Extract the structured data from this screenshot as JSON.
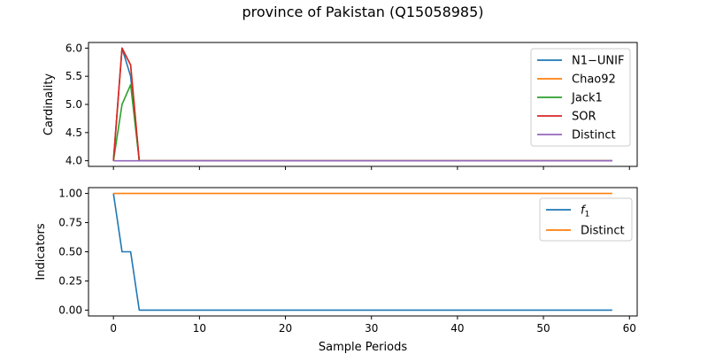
{
  "chart_data": {
    "type": "line",
    "title": "province of Pakistan (Q15058985)",
    "xlabel": "Sample Periods",
    "xlim": [
      -2.9,
      60.9
    ],
    "xticks": [
      0,
      10,
      20,
      30,
      40,
      50,
      60
    ],
    "panels": [
      {
        "ylabel": "Cardinality",
        "ylim": [
          3.9,
          6.1
        ],
        "yticks": [
          "4.0",
          "4.5",
          "5.0",
          "5.5",
          "6.0"
        ],
        "legend": "top-right",
        "series": [
          {
            "name": "N1−UNIF",
            "color": "#1f77b4",
            "points": [
              [
                0,
                4.0
              ],
              [
                1,
                6.0
              ],
              [
                2,
                5.5
              ],
              [
                3,
                4.0
              ],
              [
                58,
                4.0
              ]
            ]
          },
          {
            "name": "Chao92",
            "color": "#ff7f0e",
            "points": [
              [
                0,
                4.0
              ],
              [
                1,
                6.0
              ],
              [
                2,
                5.7
              ],
              [
                3,
                4.0
              ],
              [
                58,
                4.0
              ]
            ]
          },
          {
            "name": "Jack1",
            "color": "#2ca02c",
            "points": [
              [
                0,
                4.0
              ],
              [
                1,
                5.0
              ],
              [
                2,
                5.35
              ],
              [
                3,
                4.0
              ],
              [
                58,
                4.0
              ]
            ]
          },
          {
            "name": "SOR",
            "color": "#d62728",
            "points": [
              [
                0,
                4.0
              ],
              [
                1,
                6.0
              ],
              [
                2,
                5.7
              ],
              [
                3,
                4.0
              ],
              [
                58,
                4.0
              ]
            ]
          },
          {
            "name": "Distinct",
            "color": "#9467bd",
            "points": [
              [
                0,
                4.0
              ],
              [
                58,
                4.0
              ]
            ]
          }
        ]
      },
      {
        "ylabel": "Indicators",
        "ylim": [
          -0.05,
          1.05
        ],
        "yticks": [
          "0.00",
          "0.25",
          "0.50",
          "0.75",
          "1.00"
        ],
        "legend": "top-right",
        "series": [
          {
            "name": "f",
            "sub": "1",
            "color": "#1f77b4",
            "points": [
              [
                0,
                1.0
              ],
              [
                1,
                0.5
              ],
              [
                2,
                0.5
              ],
              [
                3,
                0.0
              ],
              [
                58,
                0.0
              ]
            ]
          },
          {
            "name": "Distinct",
            "color": "#ff7f0e",
            "points": [
              [
                0,
                1.0
              ],
              [
                58,
                1.0
              ]
            ]
          }
        ]
      }
    ]
  }
}
